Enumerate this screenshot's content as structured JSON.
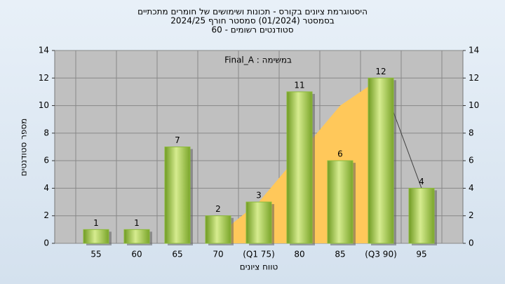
{
  "chart_data": {
    "type": "bar",
    "title": "היסטוגרמת ציונים בקורס - תכונות ושימושים של חומרים מתכתיים",
    "subtitle": "בסמסטר  (01/2024)  סמסטר חורף 2024/25",
    "subtitle2": "סטודנטים רשומים - 60",
    "annotation": "Final_A : במשימה",
    "x_label": "טווח ציונים",
    "y_label": "מספר סטודנטים",
    "categories": [
      "55",
      "60",
      "65",
      "70",
      "(Q1 75)",
      "80",
      "85",
      "(Q3 90)",
      "95"
    ],
    "values": [
      1,
      1,
      7,
      2,
      3,
      11,
      6,
      12,
      4
    ],
    "color": "#8dbb3c",
    "area": {
      "color": "#ffc85a",
      "values": [
        null,
        null,
        null,
        0.6,
        3,
        6.5,
        10,
        12,
        null
      ]
    },
    "line": {
      "color": "#404040",
      "values": [
        null,
        null,
        null,
        null,
        null,
        null,
        null,
        12,
        4
      ]
    },
    "ylim": [
      0,
      14
    ],
    "yticks": [
      0,
      2,
      4,
      6,
      8,
      10,
      12,
      14
    ],
    "y2lim": [
      0,
      14
    ],
    "y2ticks": [
      0,
      2,
      4,
      6,
      8,
      10,
      12,
      14
    ],
    "grid": true
  }
}
